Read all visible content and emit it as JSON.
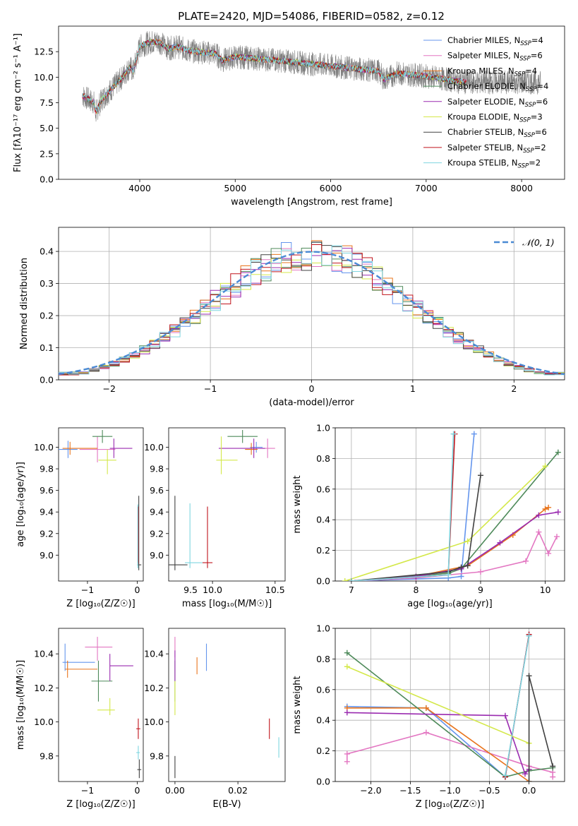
{
  "figure": {
    "title": "PLATE=2420, MJD=54086, FIBERID=0582, z=0.12"
  },
  "series_styles": [
    {
      "name": "Chabrier MILES",
      "label": "Chabrier MILES, N",
      "sub": "SSP",
      "suffix": "=4",
      "color": "#6495ed"
    },
    {
      "name": "Salpeter MILES",
      "label": "Salpeter MILES, N",
      "sub": "SSP",
      "suffix": "=6",
      "color": "#e377c2"
    },
    {
      "name": "Kroupa MILES",
      "label": "Kroupa MILES, N",
      "sub": "SSP",
      "suffix": "=4",
      "color": "#e8741c"
    },
    {
      "name": "Chabrier ELODIE",
      "label": "Chabrier ELODIE, N",
      "sub": "SSP",
      "suffix": "=4",
      "color": "#4e8a5a"
    },
    {
      "name": "Salpeter ELODIE",
      "label": "Salpeter ELODIE, N",
      "sub": "SSP",
      "suffix": "=6",
      "color": "#9a2bb0"
    },
    {
      "name": "Kroupa ELODIE",
      "label": "Kroupa ELODIE, N",
      "sub": "SSP",
      "suffix": "=3",
      "color": "#d4e84a"
    },
    {
      "name": "Chabrier STELIB",
      "label": "Chabrier STELIB, N",
      "sub": "SSP",
      "suffix": "=6",
      "color": "#404040"
    },
    {
      "name": "Salpeter STELIB",
      "label": "Salpeter STELIB, N",
      "sub": "SSP",
      "suffix": "=2",
      "color": "#c0141c"
    },
    {
      "name": "Kroupa STELIB",
      "label": "Kroupa STELIB, N",
      "sub": "SSP",
      "suffix": "=2",
      "color": "#7fd6e0"
    }
  ],
  "chart_data": [
    {
      "id": "spectrum",
      "type": "line",
      "xlabel": "wavelength [Angstrom, rest frame]",
      "ylabel": "Flux [fλ10⁻¹⁷ erg cm⁻² s⁻¹ A⁻¹]",
      "xlim": [
        3150,
        8450
      ],
      "ylim": [
        0,
        15
      ],
      "xticks": [
        4000,
        5000,
        6000,
        7000,
        8000
      ],
      "yticks": [
        0.0,
        2.5,
        5.0,
        7.5,
        10.0,
        12.5
      ],
      "data_color": "#808080",
      "data_range": [
        3400,
        8200
      ],
      "model_segments": [
        {
          "x": [
            3400,
            3520,
            3540,
            3600,
            3700,
            3800,
            3900,
            3930,
            4000,
            4100,
            4200,
            4300,
            4400,
            4500,
            4800,
            4860,
            5000,
            5500,
            6000,
            6500,
            6560,
            6700,
            6800,
            7000,
            7200,
            7400
          ],
          "y": [
            8.2,
            7.5,
            6.5,
            7.8,
            8.8,
            9.8,
            11.0,
            10.5,
            13.0,
            13.4,
            13.5,
            12.8,
            13.0,
            12.6,
            12.3,
            11.6,
            12.0,
            11.6,
            11.1,
            10.6,
            9.8,
            10.4,
            10.3,
            10.1,
            9.8,
            9.5
          ]
        }
      ]
    },
    {
      "id": "residuals",
      "type": "histogram",
      "xlabel": "(data-model)/error",
      "ylabel": "Normed distribution",
      "xlim": [
        -2.5,
        2.5
      ],
      "ylim": [
        0,
        0.475
      ],
      "xticks": [
        -2,
        -1,
        0,
        1,
        2
      ],
      "yticks": [
        0.0,
        0.1,
        0.2,
        0.3,
        0.4
      ],
      "legend": "𝒩(0, 1)",
      "gaussian": {
        "mean": 0,
        "sigma": 1
      }
    },
    {
      "id": "age_vs_Z",
      "type": "errorbar",
      "xlabel": "Z [log₁₀(Z/Z☉)]",
      "ylabel": "age  [log₁₀(age/yr)]",
      "xlim": [
        -1.58,
        0.12
      ],
      "ylim": [
        8.76,
        10.18
      ],
      "xticks": [
        -1,
        0
      ],
      "yticks": [
        9.0,
        9.2,
        9.4,
        9.6,
        9.8,
        10.0
      ],
      "points": [
        {
          "s": 0,
          "x": -1.39,
          "y": 9.98,
          "xlo": -1.58,
          "xhi": -1.2,
          "ylo": 9.9,
          "yhi": 10.06
        },
        {
          "s": 1,
          "x": -0.8,
          "y": 9.98,
          "xlo": -1.16,
          "xhi": -0.44,
          "ylo": 9.86,
          "yhi": 10.1
        },
        {
          "s": 2,
          "x": -1.35,
          "y": 9.99,
          "xlo": -1.5,
          "xhi": -0.8,
          "ylo": 9.93,
          "yhi": 10.05
        },
        {
          "s": 3,
          "x": -0.7,
          "y": 10.1,
          "xlo": -0.9,
          "xhi": -0.5,
          "ylo": 10.04,
          "yhi": 10.16
        },
        {
          "s": 4,
          "x": -0.47,
          "y": 9.99,
          "xlo": -0.55,
          "xhi": -0.1,
          "ylo": 9.9,
          "yhi": 10.08
        },
        {
          "s": 5,
          "x": -0.6,
          "y": 9.88,
          "xlo": -0.78,
          "xhi": -0.42,
          "ylo": 9.75,
          "yhi": 9.98
        },
        {
          "s": 6,
          "x": 0.03,
          "y": 8.91,
          "xlo": 0.0,
          "xhi": 0.08,
          "ylo": 8.86,
          "yhi": 9.55
        },
        {
          "s": 7,
          "x": 0.02,
          "y": 9.0,
          "xlo": 0.01,
          "xhi": 0.03,
          "ylo": 8.92,
          "yhi": 9.45
        },
        {
          "s": 8,
          "x": 0.01,
          "y": 8.93,
          "xlo": 0.0,
          "xhi": 0.02,
          "ylo": 8.88,
          "yhi": 9.47
        }
      ]
    },
    {
      "id": "age_vs_mass",
      "type": "errorbar",
      "xlabel": "mass [log₁₀(M/M☉)]",
      "ylabel": "",
      "xlim": [
        9.65,
        10.58
      ],
      "ylim": [
        8.76,
        10.18
      ],
      "xticks": [
        10.0,
        10.5
      ],
      "xtick_labels": [
        "10.0",
        "10.5"
      ],
      "extra_xtick_labels": [
        {
          "x": 9.825,
          "label": "9.5"
        }
      ],
      "yticks": [
        9.0,
        9.2,
        9.4,
        9.6,
        9.8,
        10.0
      ],
      "points": [
        {
          "s": 0,
          "x": 10.35,
          "y": 10.0,
          "xlo": 10.3,
          "xhi": 10.4,
          "ylo": 9.95,
          "yhi": 10.05
        },
        {
          "s": 1,
          "x": 10.44,
          "y": 9.99,
          "xlo": 10.38,
          "xhi": 10.5,
          "ylo": 9.9,
          "yhi": 10.08
        },
        {
          "s": 2,
          "x": 10.31,
          "y": 9.98,
          "xlo": 10.26,
          "xhi": 10.36,
          "ylo": 9.93,
          "yhi": 10.04
        },
        {
          "s": 3,
          "x": 10.24,
          "y": 10.1,
          "xlo": 10.12,
          "xhi": 10.36,
          "ylo": 10.04,
          "yhi": 10.16
        },
        {
          "s": 4,
          "x": 10.33,
          "y": 9.99,
          "xlo": 10.05,
          "xhi": 10.42,
          "ylo": 9.9,
          "yhi": 10.08
        },
        {
          "s": 5,
          "x": 10.07,
          "y": 9.88,
          "xlo": 10.03,
          "xhi": 10.2,
          "ylo": 9.75,
          "yhi": 10.1
        },
        {
          "s": 6,
          "x": 9.7,
          "y": 8.91,
          "xlo": 9.6,
          "xhi": 9.8,
          "ylo": 8.86,
          "yhi": 9.55
        },
        {
          "s": 7,
          "x": 9.96,
          "y": 8.93,
          "xlo": 9.92,
          "xhi": 10.0,
          "ylo": 8.88,
          "yhi": 9.45
        },
        {
          "s": 8,
          "x": 9.82,
          "y": 8.93,
          "xlo": 9.78,
          "xhi": 9.92,
          "ylo": 8.88,
          "yhi": 9.48
        }
      ]
    },
    {
      "id": "mass_weight_vs_age",
      "type": "line",
      "xlabel": "age  [log₁₀(age/yr)]",
      "ylabel": "mass weight",
      "xlim": [
        6.75,
        10.3
      ],
      "ylim": [
        0,
        1.0
      ],
      "xticks": [
        7,
        8,
        9,
        10
      ],
      "yticks": [
        0.0,
        0.2,
        0.4,
        0.6,
        0.8,
        1.0
      ],
      "series": [
        {
          "s": 0,
          "x": [
            7.0,
            8.5,
            8.7,
            8.9
          ],
          "y": [
            0.0,
            0.02,
            0.03,
            0.96
          ]
        },
        {
          "s": 1,
          "x": [
            7.0,
            8.0,
            9.0,
            9.7,
            9.9,
            10.05,
            10.18
          ],
          "y": [
            0.0,
            0.02,
            0.06,
            0.13,
            0.32,
            0.18,
            0.29
          ]
        },
        {
          "s": 2,
          "x": [
            7.0,
            8.0,
            8.8,
            9.5,
            10.0,
            10.05
          ],
          "y": [
            0.0,
            0.03,
            0.1,
            0.3,
            0.47,
            0.48
          ]
        },
        {
          "s": 3,
          "x": [
            7.0,
            8.5,
            8.7,
            10.2
          ],
          "y": [
            0.0,
            0.05,
            0.08,
            0.84
          ]
        },
        {
          "s": 4,
          "x": [
            7.0,
            8.0,
            8.7,
            9.3,
            9.9,
            10.2
          ],
          "y": [
            0.0,
            0.03,
            0.08,
            0.25,
            0.43,
            0.45
          ]
        },
        {
          "s": 5,
          "x": [
            6.9,
            8.8,
            10.0
          ],
          "y": [
            0.0,
            0.26,
            0.75
          ]
        },
        {
          "s": 6,
          "x": [
            7.0,
            8.5,
            8.7,
            8.8,
            9.0
          ],
          "y": [
            0.0,
            0.06,
            0.09,
            0.1,
            0.69
          ]
        },
        {
          "s": 7,
          "x": [
            7.0,
            8.5,
            8.6
          ],
          "y": [
            0.0,
            0.04,
            0.96
          ]
        },
        {
          "s": 8,
          "x": [
            7.0,
            8.5,
            8.58
          ],
          "y": [
            0.0,
            0.04,
            0.96
          ]
        }
      ]
    },
    {
      "id": "mass_vs_Z",
      "type": "errorbar",
      "xlabel": "Z [log₁₀(Z/Z☉)]",
      "ylabel": "mass [log₁₀(M/M☉)]",
      "xlim": [
        -1.58,
        0.12
      ],
      "ylim": [
        9.65,
        10.55
      ],
      "xticks": [
        -1,
        0
      ],
      "yticks": [
        9.8,
        10.0,
        10.2,
        10.4
      ],
      "points": [
        {
          "s": 0,
          "x": -1.45,
          "y": 10.35,
          "xlo": -1.5,
          "xhi": -0.85,
          "ylo": 10.3,
          "yhi": 10.46
        },
        {
          "s": 1,
          "x": -0.8,
          "y": 10.44,
          "xlo": -1.05,
          "xhi": -0.5,
          "ylo": 10.36,
          "yhi": 10.5
        },
        {
          "s": 2,
          "x": -1.4,
          "y": 10.31,
          "xlo": -1.45,
          "xhi": -0.8,
          "ylo": 10.26,
          "yhi": 10.36
        },
        {
          "s": 3,
          "x": -0.78,
          "y": 10.24,
          "xlo": -0.92,
          "xhi": -0.5,
          "ylo": 10.12,
          "yhi": 10.36
        },
        {
          "s": 4,
          "x": -0.55,
          "y": 10.33,
          "xlo": -0.55,
          "xhi": -0.08,
          "ylo": 10.24,
          "yhi": 10.4
        },
        {
          "s": 5,
          "x": -0.55,
          "y": 10.07,
          "xlo": -0.8,
          "xhi": -0.45,
          "ylo": 10.04,
          "yhi": 10.14
        },
        {
          "s": 6,
          "x": 0.04,
          "y": 9.72,
          "xlo": 0.0,
          "xhi": 0.08,
          "ylo": 9.67,
          "yhi": 9.78
        },
        {
          "s": 7,
          "x": 0.02,
          "y": 9.96,
          "xlo": -0.02,
          "xhi": 0.06,
          "ylo": 9.9,
          "yhi": 10.02
        },
        {
          "s": 8,
          "x": 0.02,
          "y": 9.82,
          "xlo": -0.02,
          "xhi": 0.05,
          "ylo": 9.78,
          "yhi": 9.86
        }
      ]
    },
    {
      "id": "mass_vs_ebv",
      "type": "errorbar",
      "xlabel": "E(B-V)",
      "ylabel": "",
      "xlim": [
        -0.002,
        0.035
      ],
      "ylim": [
        9.65,
        10.55
      ],
      "xticks": [
        0.0,
        0.02
      ],
      "xtick_labels": [
        "0.00",
        "0.02"
      ],
      "yticks": [
        9.8,
        10.0,
        10.2,
        10.4
      ],
      "points": [
        {
          "s": 0,
          "x": 0.01,
          "y": 10.38,
          "xlo": 0.01,
          "xhi": 0.01,
          "ylo": 10.3,
          "yhi": 10.46
        },
        {
          "s": 1,
          "x": 0.0,
          "y": 10.44,
          "xlo": 0.0,
          "xhi": 0.0,
          "ylo": 10.38,
          "yhi": 10.5
        },
        {
          "s": 2,
          "x": 0.007,
          "y": 10.33,
          "xlo": 0.007,
          "xhi": 0.007,
          "ylo": 10.28,
          "yhi": 10.38
        },
        {
          "s": 3,
          "x": 0.0,
          "y": 10.24,
          "xlo": 0.0,
          "xhi": 0.0,
          "ylo": 10.12,
          "yhi": 10.36
        },
        {
          "s": 4,
          "x": 0.0,
          "y": 10.33,
          "xlo": 0.0,
          "xhi": 0.0,
          "ylo": 10.24,
          "yhi": 10.42
        },
        {
          "s": 5,
          "x": 0.0,
          "y": 10.12,
          "xlo": 0.0,
          "xhi": 0.0,
          "ylo": 10.04,
          "yhi": 10.24
        },
        {
          "s": 6,
          "x": 0.0,
          "y": 9.72,
          "xlo": 0.0,
          "xhi": 0.0,
          "ylo": 9.67,
          "yhi": 9.8
        },
        {
          "s": 7,
          "x": 0.03,
          "y": 9.96,
          "xlo": 0.03,
          "xhi": 0.03,
          "ylo": 9.9,
          "yhi": 10.02
        },
        {
          "s": 8,
          "x": 0.033,
          "y": 9.85,
          "xlo": 0.033,
          "xhi": 0.033,
          "ylo": 9.79,
          "yhi": 9.91
        }
      ]
    },
    {
      "id": "mass_weight_vs_Z",
      "type": "line",
      "xlabel": "Z [log₁₀(Z/Z☉)]",
      "ylabel": "mass weight",
      "xlim": [
        -2.45,
        0.45
      ],
      "ylim": [
        0,
        1.0
      ],
      "xticks": [
        -2.0,
        -1.5,
        -1.0,
        -0.5,
        0.0
      ],
      "xtick_labels": [
        "−2.0",
        "−1.5",
        "−1.0",
        "−0.5",
        "0.0"
      ],
      "yticks": [
        0.0,
        0.2,
        0.4,
        0.6,
        0.8,
        1.0
      ],
      "series": [
        {
          "s": 0,
          "x": [
            -2.3,
            -1.3,
            -0.3,
            0.0
          ],
          "y": [
            0.49,
            0.48,
            0.03,
            0.96
          ]
        },
        {
          "s": 1,
          "x": [
            -2.3,
            -2.3,
            -1.3,
            0.0,
            0.3,
            0.3
          ],
          "y": [
            0.13,
            0.18,
            0.32,
            0.1,
            0.06,
            0.03
          ]
        },
        {
          "s": 2,
          "x": [
            -2.3,
            -1.3,
            0.0
          ],
          "y": [
            0.48,
            0.48,
            0.0
          ]
        },
        {
          "s": 3,
          "x": [
            -2.3,
            -0.3,
            0.0,
            0.3
          ],
          "y": [
            0.84,
            0.03,
            0.07,
            0.09
          ]
        },
        {
          "s": 4,
          "x": [
            -2.3,
            -0.3,
            -0.05,
            0.0
          ],
          "y": [
            0.45,
            0.43,
            0.05,
            0.08
          ]
        },
        {
          "s": 5,
          "x": [
            -2.3,
            0.0
          ],
          "y": [
            0.75,
            0.25
          ]
        },
        {
          "s": 6,
          "x": [
            0.0,
            0.0,
            0.3
          ],
          "y": [
            0.0,
            0.69,
            0.1
          ]
        },
        {
          "s": 7,
          "x": [
            -0.3,
            0.0
          ],
          "y": [
            0.03,
            0.96
          ]
        },
        {
          "s": 8,
          "x": [
            -0.3,
            0.0
          ],
          "y": [
            0.04,
            0.95
          ]
        }
      ]
    }
  ]
}
